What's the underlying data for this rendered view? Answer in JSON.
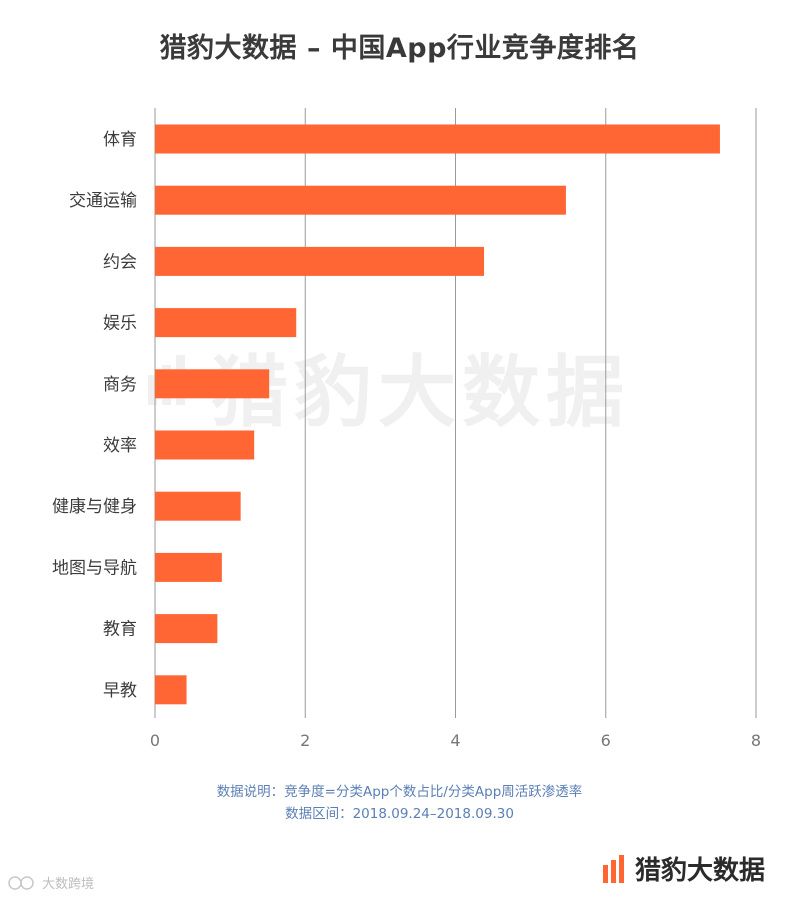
{
  "title": "猎豹大数据 – 中国App行业竞争度排名",
  "watermark": "猎豹大数据",
  "notes": {
    "line1": "数据说明：竞争度=分类App个数占比/分类App周活跃渗透率",
    "line2": "数据区间：2018.09.24–2018.09.30"
  },
  "brand": {
    "name": "猎豹大数据",
    "logo_icon": "cheetah-bars-icon"
  },
  "source_mark": {
    "text": "大数跨境",
    "icon": "source-logo-icon"
  },
  "colors": {
    "bar": "#ff6633",
    "grid": "#9a9a9a",
    "axis_text": "#777777"
  },
  "chart_data": {
    "type": "bar",
    "orientation": "horizontal",
    "title": "猎豹大数据 – 中国App行业竞争度排名",
    "categories": [
      "体育",
      "交通运输",
      "约会",
      "娱乐",
      "商务",
      "效率",
      "健康与健身",
      "地图与导航",
      "教育",
      "早教"
    ],
    "values": [
      7.52,
      5.47,
      4.38,
      1.88,
      1.52,
      1.32,
      1.14,
      0.89,
      0.83,
      0.42
    ],
    "xlim": [
      0,
      8
    ],
    "xticks": [
      "0",
      "2",
      "4",
      "6",
      "8"
    ],
    "xlabel": "",
    "ylabel": "",
    "grid": "vertical"
  }
}
